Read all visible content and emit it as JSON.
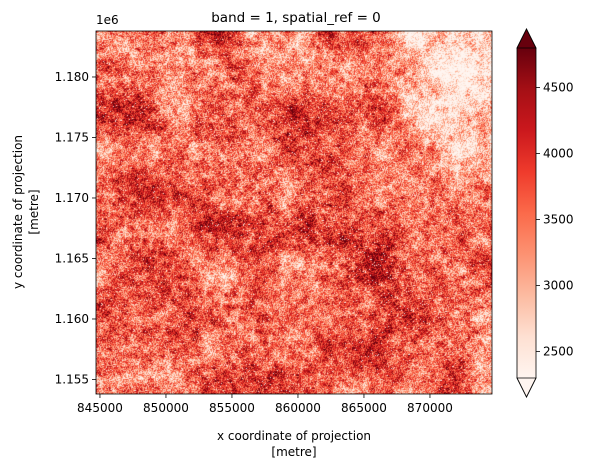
{
  "chart_data": {
    "type": "heatmap",
    "title": "band = 1, spatial_ref = 0",
    "xlabel": [
      "x coordinate of projection",
      "[metre]"
    ],
    "ylabel": [
      "y coordinate of projection",
      "[metre]"
    ],
    "y_offset_label": "1e6",
    "xlim": [
      844700,
      874700
    ],
    "ylim": [
      1.1538,
      1.1838
    ],
    "x_ticks": [
      845000,
      850000,
      855000,
      860000,
      865000,
      870000
    ],
    "x_tick_labels": [
      "845000",
      "850000",
      "855000",
      "860000",
      "865000",
      "870000"
    ],
    "y_ticks": [
      1.155,
      1.16,
      1.165,
      1.17,
      1.175,
      1.18
    ],
    "y_tick_labels": [
      "1.155",
      "1.160",
      "1.165",
      "1.170",
      "1.175",
      "1.180"
    ],
    "colorbar": {
      "colormap": "Reds",
      "vmin": 2300,
      "vmax": 4800,
      "extend": "both",
      "ticks": [
        2500,
        3000,
        3500,
        4000,
        4500
      ],
      "tick_labels": [
        "2500",
        "3000",
        "3500",
        "4000",
        "4500"
      ]
    },
    "colors": [
      "#fff5f0",
      "#fee0d2",
      "#fcbba1",
      "#fc9272",
      "#fb6a4a",
      "#ef3b2c",
      "#cb181d",
      "#a50f15",
      "#67000d"
    ]
  }
}
